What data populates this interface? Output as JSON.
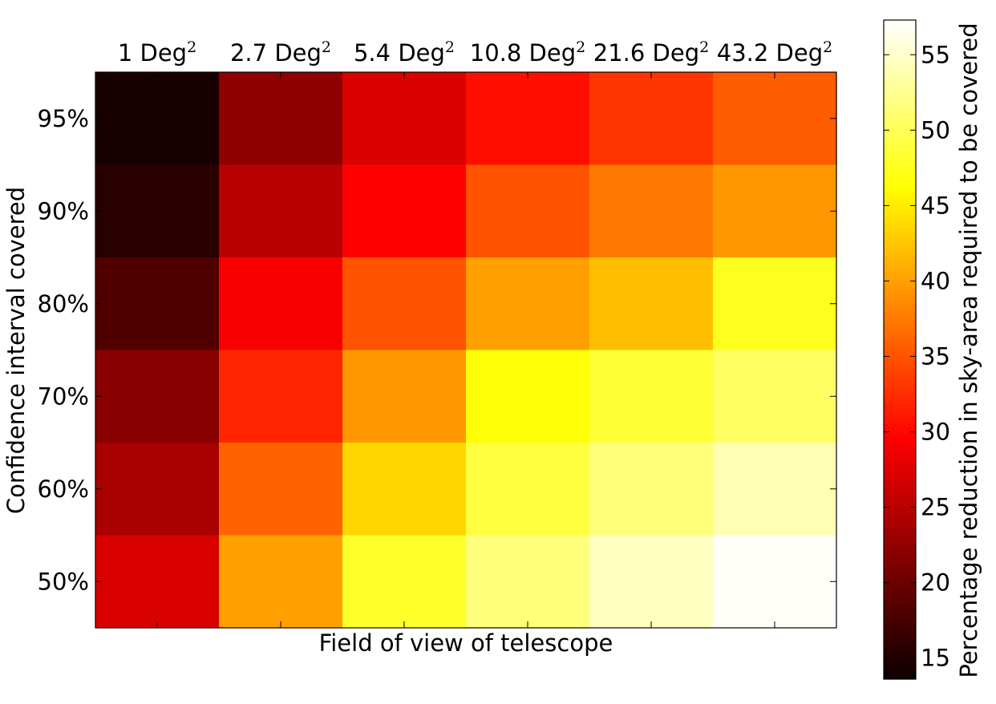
{
  "chart_data": {
    "type": "heatmap",
    "title": "",
    "xlabel": "Field of view of telescope",
    "ylabel": "Confidence interval covered",
    "colorbar_label": "Percentage reduction in sky-area required to be covered",
    "colormap": "hot",
    "x_categories": [
      {
        "value": "1",
        "unit": "Deg",
        "exp": "2"
      },
      {
        "value": "2.7",
        "unit": "Deg",
        "exp": "2"
      },
      {
        "value": "5.4",
        "unit": "Deg",
        "exp": "2"
      },
      {
        "value": "10.8",
        "unit": "Deg",
        "exp": "2"
      },
      {
        "value": "21.6",
        "unit": "Deg",
        "exp": "2"
      },
      {
        "value": "43.2",
        "unit": "Deg",
        "exp": "2"
      }
    ],
    "y_categories": [
      "95%",
      "90%",
      "80%",
      "70%",
      "60%",
      "50%"
    ],
    "values": [
      [
        14.5,
        22.0,
        26.5,
        30.5,
        33.0,
        35.5
      ],
      [
        15.5,
        24.5,
        29.0,
        35.0,
        37.5,
        39.5
      ],
      [
        18.0,
        28.5,
        35.0,
        40.0,
        42.0,
        47.5
      ],
      [
        21.5,
        32.0,
        39.5,
        46.5,
        48.5,
        50.5
      ],
      [
        23.5,
        36.0,
        43.5,
        49.0,
        51.5,
        54.0
      ],
      [
        26.5,
        40.0,
        48.0,
        51.5,
        54.5,
        57.0
      ]
    ],
    "colorbar_range": [
      13.6,
      57.3
    ],
    "colorbar_ticks": [
      15,
      20,
      25,
      30,
      35,
      40,
      45,
      50,
      55
    ],
    "x_ticks_position": "top",
    "grid": false
  }
}
